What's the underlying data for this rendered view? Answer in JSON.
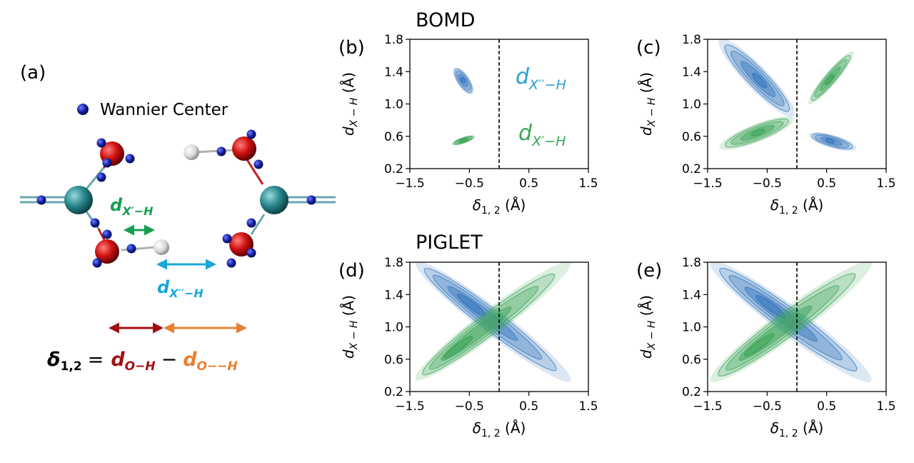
{
  "figure": {
    "panel_a": {
      "label": "(a)",
      "legend_text": "Wannier Center",
      "dx1_main": "d",
      "dx1_sub": "X′−H",
      "dx2_main": "d",
      "dx2_sub": "X′′−H",
      "equation": {
        "lhs_main": "δ",
        "lhs_sub": "1,2",
        "equals": "=",
        "t1_main": "d",
        "t1_sub": "O−H",
        "minus": "−",
        "t2_main": "d",
        "t2_sub": "O−−H"
      }
    },
    "row_titles": [
      "BOMD",
      "PIGLET"
    ],
    "annotations": {
      "dx2_main": "d",
      "dx2_sub": "X′′−H",
      "dx1_main": "d",
      "dx1_sub": "X′−H"
    },
    "colors": {
      "blue": "#3a7bbf",
      "green": "#3fa65a",
      "teal": "#2a8a8f",
      "red_atom": "#d01010",
      "wannier": "#1420a8",
      "hydrogen": "#e8e8e8",
      "arrow_green": "#14a050",
      "arrow_cyan": "#18a8d8",
      "arrow_darkred": "#a01010",
      "arrow_orange": "#e88030",
      "label_green": "#3aa858",
      "label_cyan": "#28a0d0"
    }
  },
  "chart_data": [
    {
      "panel": "(b)",
      "type": "contour",
      "xlabel": "δ1,2 (Å)",
      "ylabel": "dX−H (Å)",
      "xlim": [
        -1.5,
        1.5
      ],
      "ylim": [
        0.2,
        1.8
      ],
      "xticks": [
        "−1.5",
        "−0.5",
        "0.5",
        "1.5"
      ],
      "yticks": [
        "0.2",
        "0.6",
        "1.0",
        "1.4",
        "1.8"
      ],
      "divider_x": 0,
      "series": [
        {
          "name": "dX′′−H",
          "color": "blue",
          "center": [
            -0.6,
            1.3
          ],
          "end_a": [
            -0.75,
            1.45
          ],
          "end_b": [
            -0.45,
            1.12
          ],
          "width": 0.05
        },
        {
          "name": "dX′−H",
          "color": "green",
          "center": [
            -0.6,
            0.55
          ],
          "end_a": [
            -0.8,
            0.5
          ],
          "end_b": [
            -0.4,
            0.6
          ],
          "width": 0.025
        }
      ]
    },
    {
      "panel": "(c)",
      "type": "contour",
      "xlabel": "δ1,2 (Å)",
      "ylabel": "dX−H (Å)",
      "xlim": [
        -1.5,
        1.5
      ],
      "ylim": [
        0.2,
        1.8
      ],
      "xticks": [
        "−1.5",
        "−0.5",
        "0.5",
        "1.5"
      ],
      "yticks": [
        "0.2",
        "0.6",
        "1.0",
        "1.4",
        "1.8"
      ],
      "divider_x": 0,
      "series": [
        {
          "color": "blue",
          "center": [
            -0.6,
            1.3
          ],
          "end_a": [
            -1.3,
            1.8
          ],
          "end_b": [
            -0.05,
            0.85
          ],
          "width": 0.09
        },
        {
          "color": "blue",
          "center": [
            0.55,
            0.53
          ],
          "end_a": [
            0.2,
            0.62
          ],
          "end_b": [
            1.0,
            0.45
          ],
          "width": 0.05
        },
        {
          "color": "green",
          "center": [
            -0.6,
            0.55
          ],
          "end_a": [
            -1.3,
            0.46
          ],
          "end_b": [
            -0.05,
            0.82
          ],
          "width": 0.07
        },
        {
          "color": "green",
          "center": [
            0.55,
            1.3
          ],
          "end_a": [
            0.2,
            1.0
          ],
          "end_b": [
            0.95,
            1.65
          ],
          "width": 0.05
        }
      ]
    },
    {
      "panel": "(d)",
      "type": "contour",
      "xlabel": "δ1,2 (Å)",
      "ylabel": "dX−H (Å)",
      "xlim": [
        -1.5,
        1.5
      ],
      "ylim": [
        0.2,
        1.8
      ],
      "xticks": [
        "−1.5",
        "−0.5",
        "0.5",
        "1.5"
      ],
      "yticks": [
        "0.2",
        "0.6",
        "1.0",
        "1.4",
        "1.8"
      ],
      "divider_x": 0,
      "series": [
        {
          "color": "blue",
          "center": [
            -0.55,
            1.25
          ],
          "end_a": [
            -1.4,
            1.8
          ],
          "end_b": [
            1.2,
            0.33
          ],
          "width": 0.1
        },
        {
          "color": "green",
          "center": [
            -0.55,
            0.52
          ],
          "end_a": [
            -1.4,
            0.35
          ],
          "end_b": [
            1.2,
            1.8
          ],
          "width": 0.1
        }
      ]
    },
    {
      "panel": "(e)",
      "type": "contour",
      "xlabel": "δ1,2 (Å)",
      "ylabel": "dX−H (Å)",
      "xlim": [
        -1.5,
        1.5
      ],
      "ylim": [
        0.2,
        1.8
      ],
      "xticks": [
        "−1.5",
        "−0.5",
        "0.5",
        "1.5"
      ],
      "yticks": [
        "0.2",
        "0.6",
        "1.0",
        "1.4",
        "1.8"
      ],
      "divider_x": 0,
      "series": [
        {
          "color": "blue",
          "center": [
            -0.5,
            1.25
          ],
          "end_a": [
            -1.45,
            1.8
          ],
          "end_b": [
            1.25,
            0.33
          ],
          "width": 0.11
        },
        {
          "color": "green",
          "center": [
            -0.5,
            0.55
          ],
          "end_a": [
            -1.45,
            0.33
          ],
          "end_b": [
            1.25,
            1.8
          ],
          "width": 0.11
        }
      ]
    }
  ]
}
